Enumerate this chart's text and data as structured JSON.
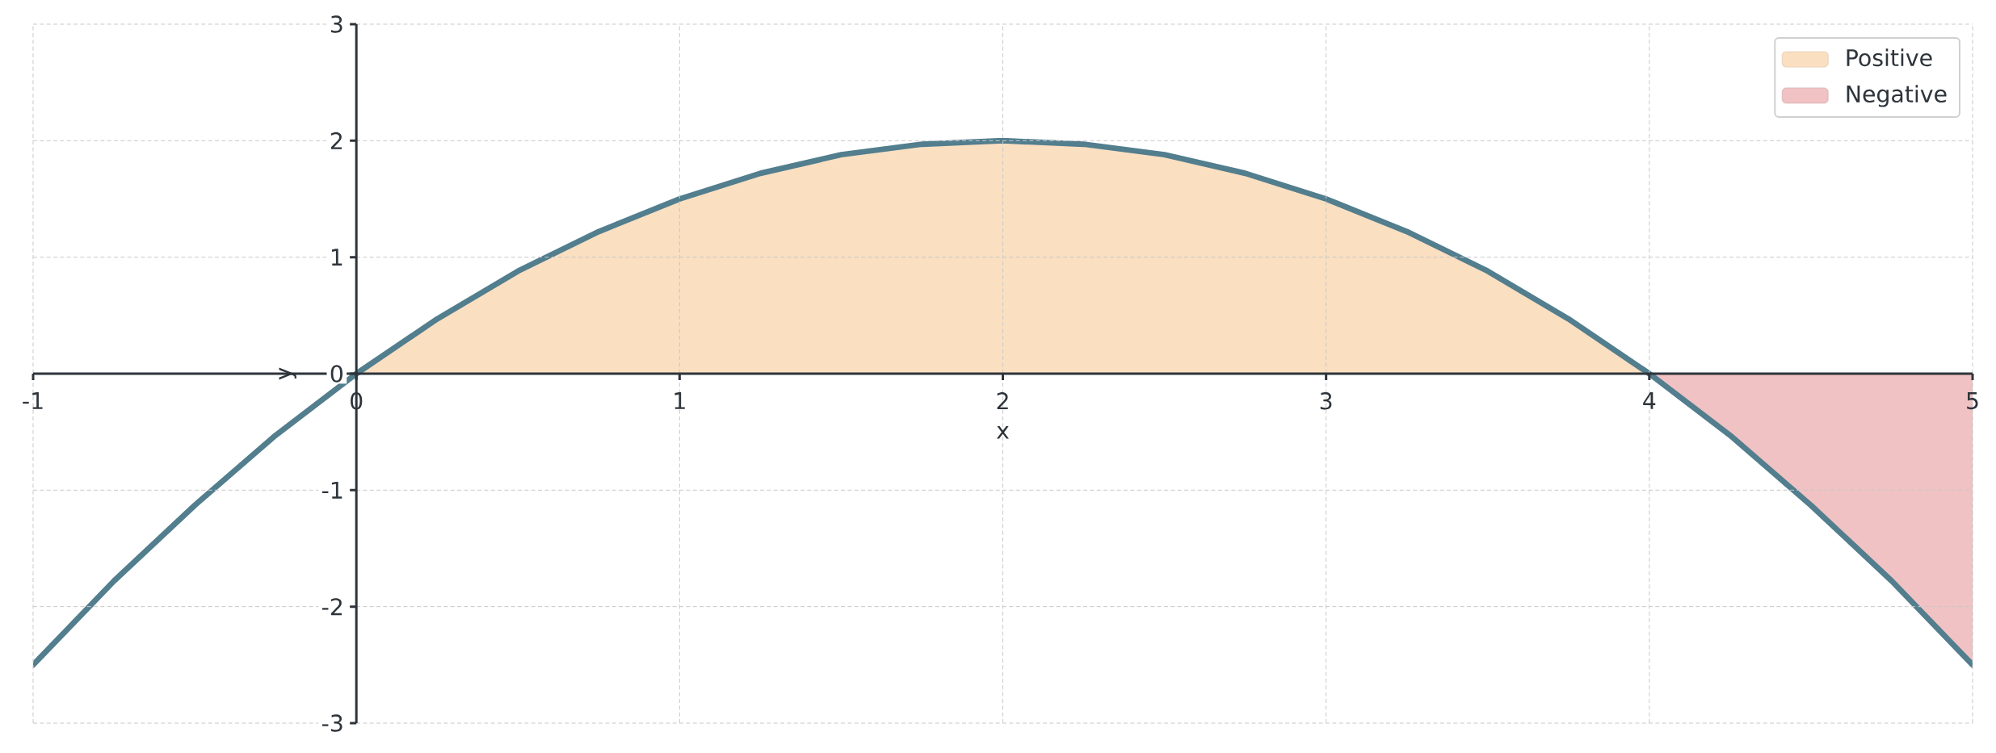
{
  "chart_data": {
    "type": "line",
    "xlabel": "x",
    "ylabel": "y",
    "xlim": [
      -1,
      5
    ],
    "ylim": [
      -3,
      3
    ],
    "xticks": [
      -1,
      0,
      1,
      2,
      3,
      4,
      5
    ],
    "yticks": [
      -3,
      -2,
      -1,
      0,
      1,
      2,
      3
    ],
    "grid": true,
    "legend": "top right",
    "series": [
      {
        "type": "area",
        "name": "Positive",
        "color": "#fadfc1",
        "x": [
          0,
          0.25,
          0.5,
          0.75,
          1,
          1.25,
          1.5,
          1.75,
          2,
          2.25,
          2.5,
          2.75,
          3,
          3.25,
          3.5,
          3.75,
          4
        ],
        "values": [
          0,
          0.47,
          0.88,
          1.22,
          1.5,
          1.72,
          1.88,
          1.97,
          2,
          1.97,
          1.88,
          1.72,
          1.5,
          1.22,
          0.88,
          0.47,
          0
        ]
      },
      {
        "type": "area",
        "name": "Negative",
        "color": "#f0c2c3",
        "x": [
          4,
          4.25,
          4.5,
          4.75,
          5
        ],
        "values": [
          0,
          -0.53,
          -1.13,
          -1.78,
          -2.5
        ]
      },
      {
        "color": "#527e8e",
        "x": [
          -1,
          -0.75,
          -0.5,
          -0.25,
          0,
          0.25,
          0.5,
          0.75,
          1,
          1.25,
          1.5,
          1.75,
          2,
          2.25,
          2.5,
          2.75,
          3,
          3.25,
          3.5,
          3.75,
          4,
          4.25,
          4.5,
          4.75,
          5
        ],
        "values": [
          -2.5,
          -1.78,
          -1.13,
          -0.53,
          0,
          0.47,
          0.88,
          1.22,
          1.5,
          1.72,
          1.88,
          1.97,
          2,
          1.97,
          1.88,
          1.72,
          1.5,
          1.22,
          0.88,
          0.47,
          0,
          -0.53,
          -1.13,
          -1.78,
          -2.5
        ]
      }
    ]
  }
}
